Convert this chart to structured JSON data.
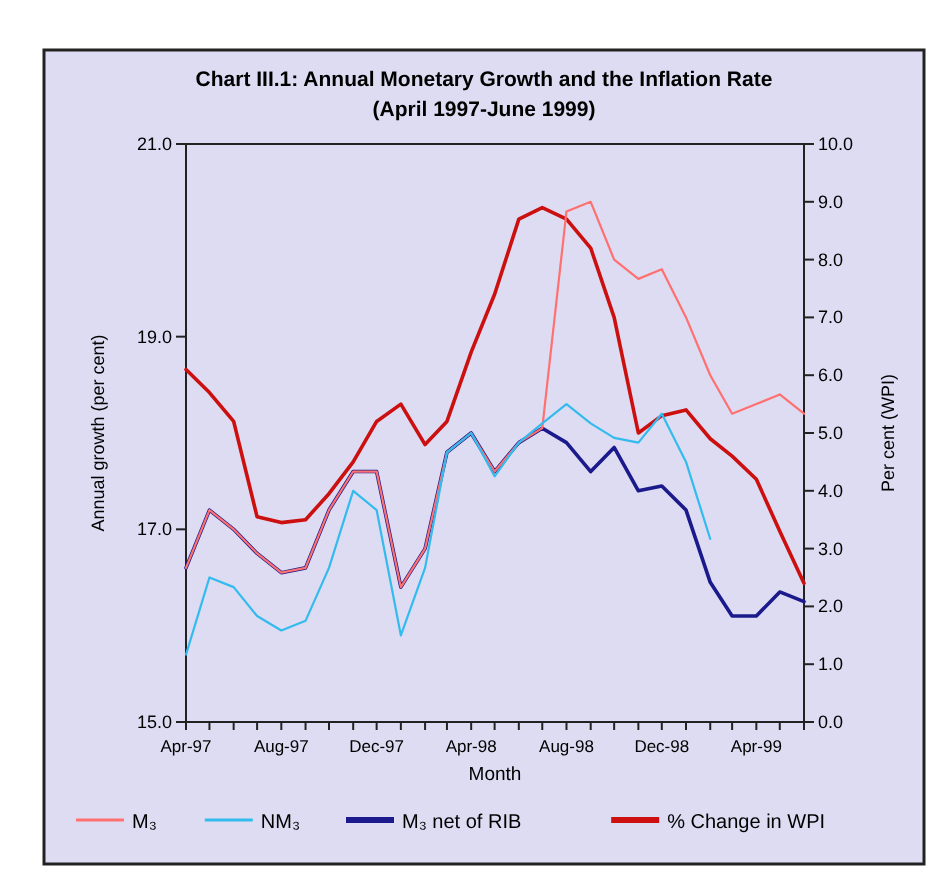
{
  "chart_data": {
    "type": "line",
    "title": "Chart III.1: Annual Monetary Growth and the Inflation Rate",
    "subtitle": "(April 1997-June 1999)",
    "xlabel": "Month",
    "ylabel": "Annual growth (per cent)",
    "y2label": "Per cent (WPI)",
    "x": [
      "1997-04",
      "1997-05",
      "1997-06",
      "1997-07",
      "1997-08",
      "1997-09",
      "1997-10",
      "1997-11",
      "1997-12",
      "1998-01",
      "1998-02",
      "1998-03",
      "1998-04",
      "1998-05",
      "1998-06",
      "1998-07",
      "1998-08",
      "1998-09",
      "1998-10",
      "1998-11",
      "1998-12",
      "1999-01",
      "1999-02",
      "1999-03",
      "1999-04",
      "1999-05",
      "1999-06"
    ],
    "xlim": [
      "1997-04",
      "1999-06"
    ],
    "xticks": [
      {
        "value": "1997-04",
        "label": "Apr-97"
      },
      {
        "value": "1997-05",
        "label": null
      },
      {
        "value": "1997-06",
        "label": null
      },
      {
        "value": "1997-07",
        "label": null
      },
      {
        "value": "1997-08",
        "label": "Aug-97"
      },
      {
        "value": "1997-09",
        "label": null
      },
      {
        "value": "1997-10",
        "label": null
      },
      {
        "value": "1997-11",
        "label": null
      },
      {
        "value": "1997-12",
        "label": "Dec-97"
      },
      {
        "value": "1998-01",
        "label": null
      },
      {
        "value": "1998-02",
        "label": null
      },
      {
        "value": "1998-03",
        "label": null
      },
      {
        "value": "1998-04",
        "label": "Apr-98"
      },
      {
        "value": "1998-05",
        "label": null
      },
      {
        "value": "1998-06",
        "label": null
      },
      {
        "value": "1998-07",
        "label": null
      },
      {
        "value": "1998-08",
        "label": "Aug-98"
      },
      {
        "value": "1998-09",
        "label": null
      },
      {
        "value": "1998-10",
        "label": null
      },
      {
        "value": "1998-11",
        "label": null
      },
      {
        "value": "1998-12",
        "label": "Dec-98"
      },
      {
        "value": "1999-01",
        "label": null
      },
      {
        "value": "1999-02",
        "label": null
      },
      {
        "value": "1999-03",
        "label": null
      },
      {
        "value": "1999-04",
        "label": "Apr-99"
      },
      {
        "value": "1999-05",
        "label": null
      },
      {
        "value": "1999-06",
        "label": null
      }
    ],
    "ylim": [
      15,
      21
    ],
    "yticks": [
      {
        "value": 15,
        "label": "15.0"
      },
      {
        "value": 17,
        "label": "17.0"
      },
      {
        "value": 19,
        "label": "19.0"
      },
      {
        "value": 21,
        "label": "21.0"
      }
    ],
    "y2lim": [
      0,
      10
    ],
    "y2ticks": [
      {
        "value": 0,
        "label": "0.0"
      },
      {
        "value": 1,
        "label": "1.0"
      },
      {
        "value": 2,
        "label": "2.0"
      },
      {
        "value": 3,
        "label": "3.0"
      },
      {
        "value": 4,
        "label": "4.0"
      },
      {
        "value": 5,
        "label": "5.0"
      },
      {
        "value": 6,
        "label": "6.0"
      },
      {
        "value": 7,
        "label": "7.0"
      },
      {
        "value": 8,
        "label": "8.0"
      },
      {
        "value": 9,
        "label": "9.0"
      },
      {
        "value": 10,
        "label": "10.0"
      }
    ],
    "grid": false,
    "legend": "bottom",
    "marker": "none",
    "line_style": "solid",
    "series": [
      {
        "name": "M₃",
        "color": "#ff7070",
        "values": [
          16.6,
          17.2,
          17.0,
          16.75,
          16.55,
          16.6,
          17.2,
          17.6,
          17.6,
          16.4,
          16.8,
          17.8,
          18.0,
          17.6,
          17.9,
          18.05,
          20.3,
          20.4,
          19.8,
          19.6,
          19.7,
          19.2,
          18.6,
          18.2,
          18.3,
          18.4,
          18.2
        ]
      },
      {
        "name": "NM₃",
        "color": "#33bbee",
        "values": [
          15.7,
          16.5,
          16.4,
          16.1,
          15.95,
          16.05,
          16.6,
          17.4,
          17.2,
          15.9,
          16.6,
          17.8,
          18.0,
          17.55,
          17.9,
          18.1,
          18.3,
          18.1,
          17.95,
          17.9,
          18.2,
          17.7,
          16.9,
          null,
          null,
          null,
          null
        ]
      },
      {
        "name": "M₃ net of RIB",
        "color": "#1a1a8c",
        "values": [
          16.6,
          17.2,
          17.0,
          16.75,
          16.55,
          16.6,
          17.2,
          17.6,
          17.6,
          16.4,
          16.8,
          17.8,
          18.0,
          17.6,
          17.9,
          18.05,
          17.9,
          17.6,
          17.85,
          17.4,
          17.45,
          17.2,
          16.45,
          16.1,
          16.1,
          16.35,
          16.25
        ]
      },
      {
        "name": "% Change in WPI",
        "color": "#cc1010",
        "axis": "y2",
        "values": [
          6.1,
          5.7,
          5.2,
          3.55,
          3.45,
          3.5,
          3.95,
          4.5,
          5.2,
          5.5,
          4.8,
          5.2,
          6.4,
          7.4,
          8.7,
          8.9,
          8.7,
          8.2,
          7.0,
          5.0,
          5.3,
          5.4,
          4.9,
          4.6,
          4.2,
          3.3,
          2.4
        ]
      }
    ]
  }
}
